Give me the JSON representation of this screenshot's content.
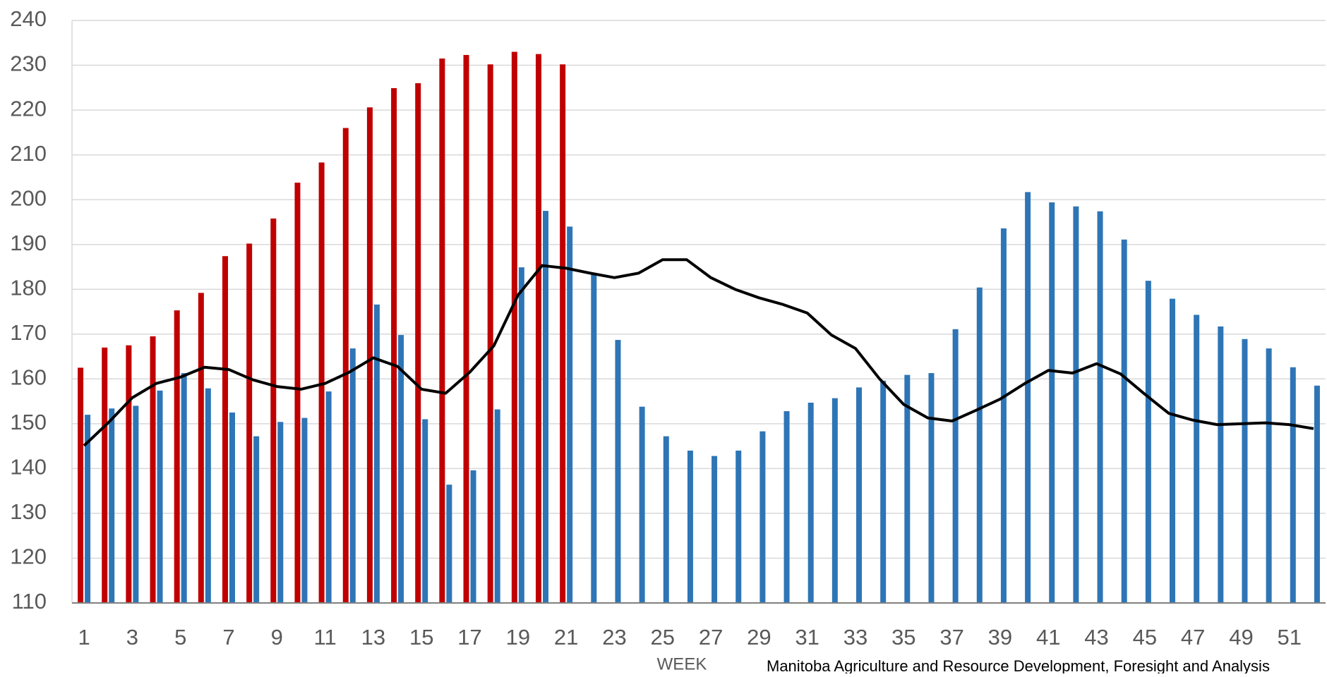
{
  "chart_data": {
    "type": "bar",
    "x_label": "WEEK",
    "annotation": "Manitoba Agriculture and Resource Development, Foresight and Analysis",
    "categories": [
      1,
      null,
      3,
      null,
      5,
      null,
      7,
      null,
      9,
      null,
      11,
      null,
      13,
      null,
      15,
      null,
      17,
      null,
      19,
      null,
      21,
      null,
      23,
      null,
      25,
      null,
      27,
      null,
      29,
      null,
      31,
      null,
      33,
      null,
      35,
      null,
      37,
      null,
      39,
      null,
      41,
      null,
      43,
      null,
      45,
      null,
      47,
      null,
      49,
      null,
      51,
      null
    ],
    "series": [
      {
        "type": "bar",
        "color": "#c00000",
        "values": [
          162.5,
          167,
          167.5,
          169.5,
          175.3,
          179.2,
          187.4,
          190.2,
          195.8,
          203.8,
          208.3,
          216,
          220.6,
          224.9,
          226,
          231.5,
          232.3,
          230.2,
          233,
          232.5,
          230.2,
          null,
          null,
          null,
          null,
          null,
          null,
          null,
          null,
          null,
          null,
          null,
          null,
          null,
          null,
          null,
          null,
          null,
          null,
          null,
          null,
          null,
          null,
          null,
          null,
          null,
          null,
          null,
          null,
          null,
          null,
          null
        ]
      },
      {
        "type": "bar",
        "color": "#2e75b6",
        "values": [
          152,
          153.4,
          154,
          157.4,
          161.3,
          157.9,
          152.5,
          147.2,
          150.4,
          151.3,
          157.2,
          166.8,
          176.6,
          169.8,
          151,
          136.4,
          139.6,
          153.2,
          184.9,
          197.5,
          194,
          183.6,
          168.7,
          153.8,
          147.2,
          144,
          142.8,
          144,
          148.3,
          152.8,
          154.7,
          155.7,
          158.1,
          159.6,
          160.9,
          161.3,
          171.1,
          180.4,
          193.6,
          201.7,
          199.4,
          198.5,
          197.4,
          191.1,
          181.9,
          177.9,
          174.3,
          171.7,
          168.9,
          166.8,
          162.6,
          158.5
        ]
      },
      {
        "type": "line",
        "color": "#000000",
        "values": [
          145.1,
          150.2,
          155.8,
          159,
          160.4,
          162.6,
          162.1,
          159.8,
          158.3,
          157.7,
          159,
          161.5,
          164.7,
          162.8,
          157.7,
          156.8,
          161.5,
          167.4,
          178.7,
          185.3,
          184.7,
          183.6,
          182.6,
          183.6,
          186.6,
          186.6,
          182.6,
          180,
          178.1,
          176.6,
          174.7,
          169.8,
          166.8,
          160,
          154.3,
          151.3,
          150.6,
          153,
          155.5,
          158.9,
          161.9,
          161.3,
          163.4,
          161.1,
          156.6,
          152.3,
          150.8,
          149.8,
          150,
          150.2,
          149.8,
          148.9
        ]
      }
    ],
    "ylim": [
      110,
      240
    ],
    "yticks": [
      110,
      120,
      130,
      140,
      150,
      160,
      170,
      180,
      190,
      200,
      210,
      220,
      230,
      240
    ],
    "grid": true
  }
}
